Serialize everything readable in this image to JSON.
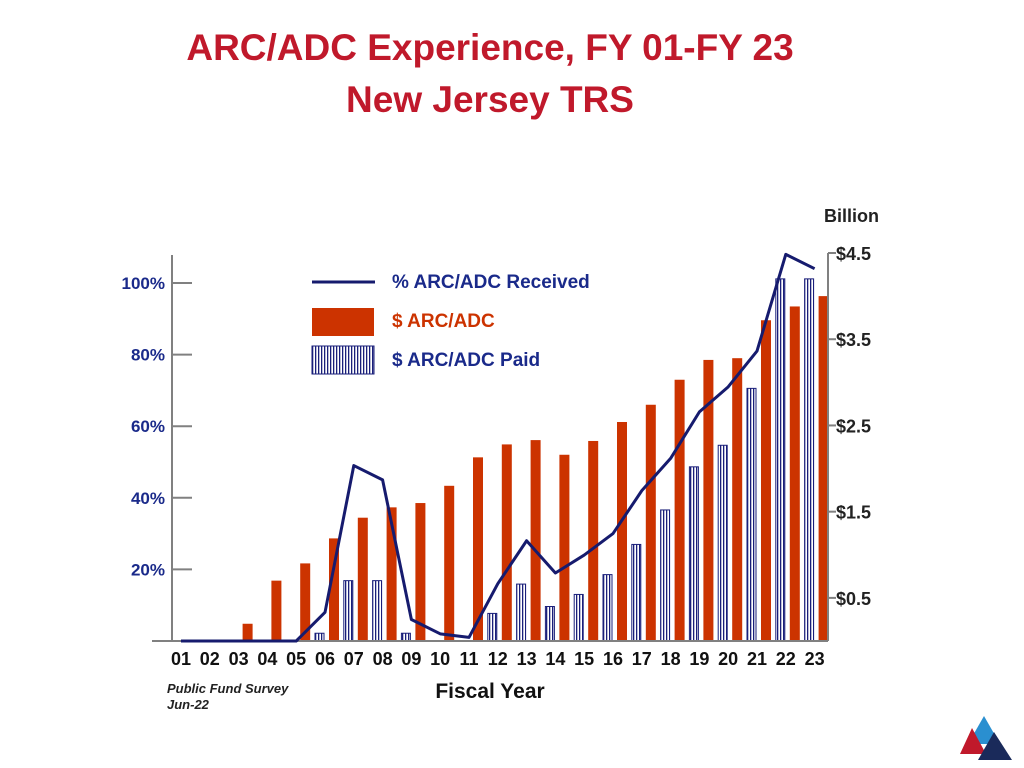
{
  "title": {
    "line1": "ARC/ADC Experience, FY 01-FY 23",
    "line2": "New Jersey TRS"
  },
  "source": {
    "line1": "Public Fund Survey",
    "line2": "Jun-22"
  },
  "colors": {
    "title": "#c0192b",
    "arc_bar": "#cc3300",
    "paid_bar": "#1a1f7a",
    "line": "#161b6e",
    "axis_text": "#1a2a8a",
    "axis_line": "#808080"
  },
  "chart_data": {
    "type": "bar",
    "xlabel": "Fiscal Year",
    "ylabel_right_unit": "Billion",
    "categories": [
      "01",
      "02",
      "03",
      "04",
      "05",
      "06",
      "07",
      "08",
      "09",
      "10",
      "11",
      "12",
      "13",
      "14",
      "15",
      "16",
      "17",
      "18",
      "19",
      "20",
      "21",
      "22",
      "23"
    ],
    "left_axis": {
      "ticks": [
        "20%",
        "40%",
        "60%",
        "80%",
        "100%"
      ],
      "tick_values": [
        20,
        40,
        60,
        80,
        100
      ],
      "range": [
        0,
        108
      ]
    },
    "right_axis": {
      "ticks": [
        "$0.5",
        "$1.5",
        "$2.5",
        "$3.5",
        "$4.5"
      ],
      "tick_values": [
        0.5,
        1.5,
        2.5,
        3.5,
        4.5
      ],
      "range": [
        0,
        4.5
      ]
    },
    "series": [
      {
        "name": "$ ARC/ADC",
        "kind": "bar",
        "axis": "right",
        "values": [
          0,
          0,
          0.2,
          0.7,
          0.9,
          1.19,
          1.43,
          1.55,
          1.6,
          1.8,
          2.13,
          2.28,
          2.33,
          2.16,
          2.32,
          2.54,
          2.74,
          3.03,
          3.26,
          3.28,
          3.72,
          3.88,
          4.0
        ]
      },
      {
        "name": "$ ARC/ADC Paid",
        "kind": "bar",
        "axis": "right",
        "values": [
          0,
          0,
          0,
          0,
          0,
          0.09,
          0.7,
          0.7,
          0.09,
          0,
          0,
          0.32,
          0.66,
          0.4,
          0.54,
          0.77,
          1.12,
          1.52,
          2.02,
          2.27,
          2.93,
          4.2,
          4.2
        ]
      },
      {
        "name": "% ARC/ADC Received",
        "kind": "line",
        "axis": "left",
        "values": [
          0,
          0,
          0,
          0,
          0,
          8,
          49,
          45,
          6,
          2,
          1,
          16,
          28,
          19,
          24,
          30,
          42,
          51,
          64,
          71,
          81,
          108,
          104
        ]
      }
    ],
    "legend_position": "top-left",
    "grid": false
  }
}
